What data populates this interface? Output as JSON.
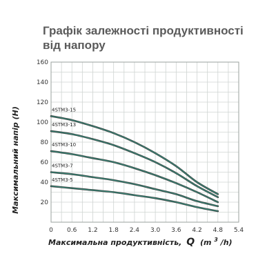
{
  "chart_data": {
    "type": "line",
    "title": "Графік залежності продуктивності від напору",
    "xlabel": "Максимальна продуктивність,",
    "xlabel_symbol": "Q",
    "xlabel_unit_prefix": "(m",
    "xlabel_unit_sup": "3",
    "xlabel_unit_suffix": "/h)",
    "ylabel": "Максимальний напір (H)",
    "xlim": [
      0,
      5.4
    ],
    "ylim": [
      0,
      160
    ],
    "x_ticks": [
      "0",
      "0.6",
      "1.2",
      "1.8",
      "2.4",
      "3.0",
      "3.6",
      "4.2",
      "4.8",
      "5.4"
    ],
    "y_ticks": [
      "20",
      "40",
      "60",
      "80",
      "100",
      "120",
      "140",
      "160"
    ],
    "grid": true,
    "series_color": "#3a8f7e",
    "series": [
      {
        "name": "4STM3-15",
        "x": [
          0,
          0.6,
          1.2,
          1.8,
          2.4,
          3.0,
          3.6,
          4.2,
          4.8
        ],
        "y": [
          106,
          102,
          96,
          89,
          80,
          69,
          56,
          40,
          28
        ]
      },
      {
        "name": "4STM3-13",
        "x": [
          0,
          0.6,
          1.2,
          1.8,
          2.4,
          3.0,
          3.6,
          4.2,
          4.8
        ],
        "y": [
          91,
          88,
          83,
          77,
          69,
          60,
          49,
          36,
          25
        ]
      },
      {
        "name": "4STM3-10",
        "x": [
          0,
          0.6,
          1.2,
          1.8,
          2.4,
          3.0,
          3.6,
          4.2,
          4.8
        ],
        "y": [
          71,
          68,
          64,
          60,
          54,
          47,
          39,
          30,
          20
        ]
      },
      {
        "name": "4STM3-7",
        "x": [
          0,
          0.6,
          1.2,
          1.8,
          2.4,
          3.0,
          3.6,
          4.2,
          4.8
        ],
        "y": [
          50,
          48,
          45,
          42,
          38,
          33,
          28,
          21,
          16
        ]
      },
      {
        "name": "4STM3-5",
        "x": [
          0,
          0.6,
          1.2,
          1.8,
          2.4,
          3.0,
          3.6,
          4.2,
          4.8
        ],
        "y": [
          36,
          34,
          32,
          30,
          27,
          24,
          20,
          15,
          11
        ]
      }
    ]
  }
}
